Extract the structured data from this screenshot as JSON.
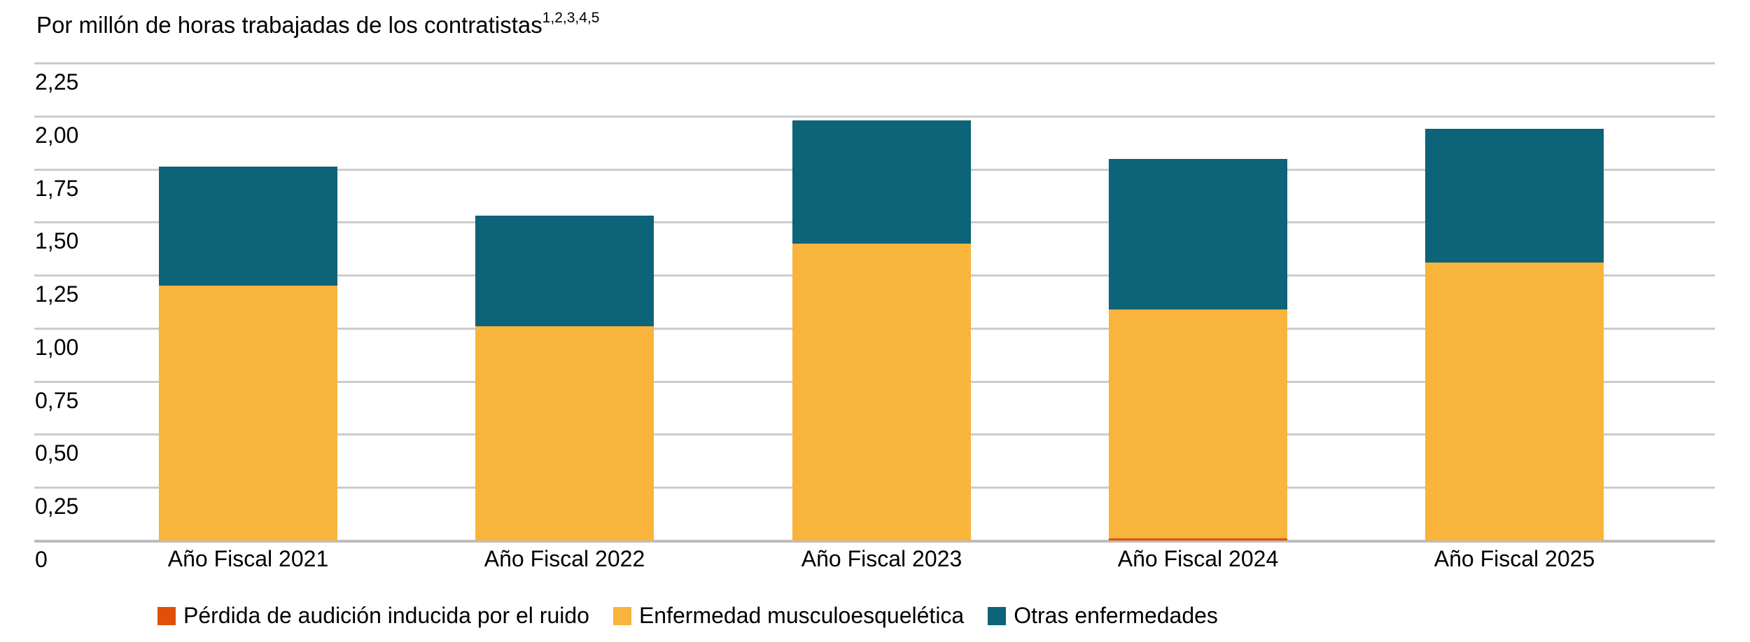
{
  "title": {
    "text": "Por millón de horas trabajadas de los contratistas",
    "superscript": "1,2,3,4,5"
  },
  "chart_data": {
    "type": "bar",
    "stacked": true,
    "title": "Por millón de horas trabajadas de los contratistas",
    "title_footnote_markers": "1,2,3,4,5",
    "xlabel": "",
    "ylabel": "",
    "categories": [
      "Año Fiscal 2021",
      "Año Fiscal 2022",
      "Año Fiscal 2023",
      "Año Fiscal 2024",
      "Año Fiscal 2025"
    ],
    "series": [
      {
        "name": "Pérdida de audición inducida por el ruido",
        "color": "#e0500a",
        "values": [
          0,
          0,
          0,
          0.01,
          0
        ]
      },
      {
        "name": "Enfermedad musculoesquelética",
        "color": "#f9b43c",
        "values": [
          1.2,
          1.01,
          1.4,
          1.08,
          1.31
        ]
      },
      {
        "name": "Otras enfermedades",
        "color": "#0d6377",
        "values": [
          0.56,
          0.52,
          0.58,
          0.71,
          0.63
        ]
      }
    ],
    "totals_estimated": [
      1.76,
      1.53,
      1.98,
      1.8,
      1.94
    ],
    "ylim": [
      0,
      2.25
    ],
    "y_ticks": [
      {
        "label": "2,25",
        "value": 2.25
      },
      {
        "label": "2,00",
        "value": 2.0
      },
      {
        "label": "1,75",
        "value": 1.75
      },
      {
        "label": "1,50",
        "value": 1.5
      },
      {
        "label": "1,25",
        "value": 1.25
      },
      {
        "label": "1,00",
        "value": 1.0
      },
      {
        "label": "0,75",
        "value": 0.75
      },
      {
        "label": "0,50",
        "value": 0.5
      },
      {
        "label": "0,25",
        "value": 0.25
      },
      {
        "label": "0",
        "value": 0
      }
    ],
    "grid": true,
    "legend_position": "bottom-left",
    "colors": {
      "gridline": "#cccccc",
      "baseline": "#bcbcbc",
      "text": "#000000",
      "background": "#ffffff"
    }
  }
}
